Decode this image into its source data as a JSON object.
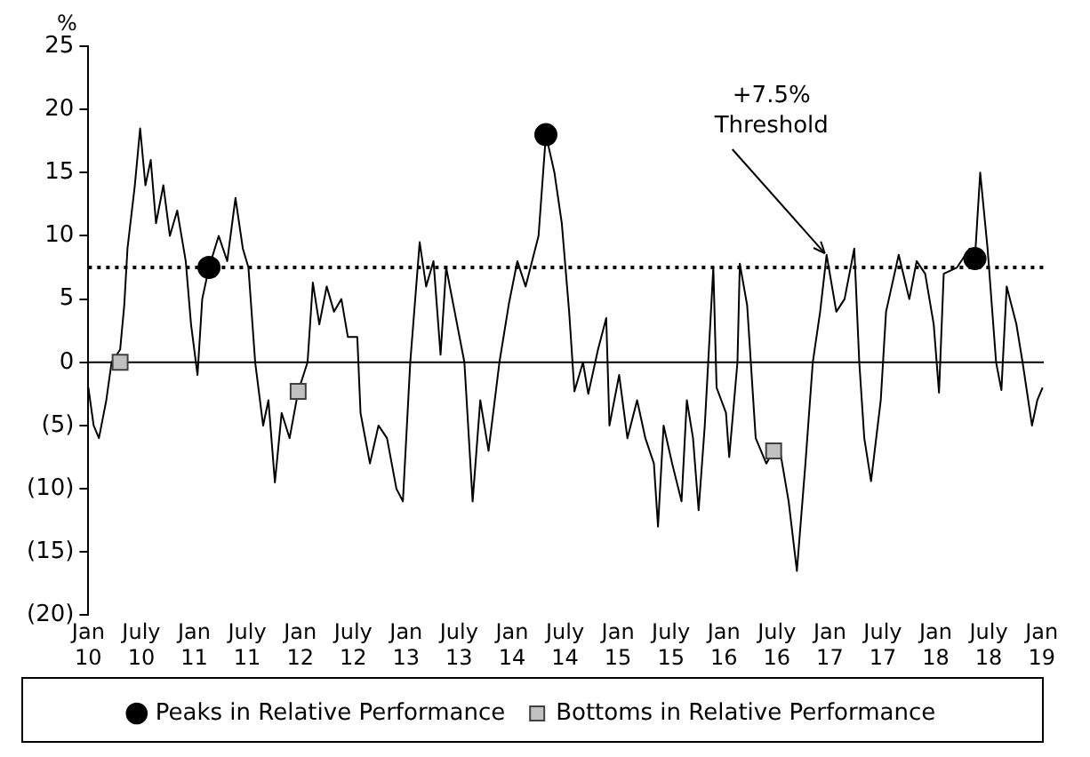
{
  "chart_data": {
    "type": "line",
    "ylabel": "%",
    "legend": "bottom",
    "grid": false,
    "xlim": [
      "2010-01-01",
      "2019-01-08"
    ],
    "xticks": [
      {
        "value": "2010-01",
        "label": "Jan 10"
      },
      {
        "value": "2010-07",
        "label": "July 10"
      },
      {
        "value": "2011-01",
        "label": "Jan 11"
      },
      {
        "value": "2011-07",
        "label": "July 11"
      },
      {
        "value": "2012-01",
        "label": "Jan 12"
      },
      {
        "value": "2012-07",
        "label": "July 12"
      },
      {
        "value": "2013-01",
        "label": "Jan 13"
      },
      {
        "value": "2013-07",
        "label": "July 13"
      },
      {
        "value": "2014-01",
        "label": "Jan 14"
      },
      {
        "value": "2014-07",
        "label": "July 14"
      },
      {
        "value": "2015-01",
        "label": "Jan 15"
      },
      {
        "value": "2015-07",
        "label": "July 15"
      },
      {
        "value": "2016-01",
        "label": "Jan 16"
      },
      {
        "value": "2016-07",
        "label": "July 16"
      },
      {
        "value": "2017-01",
        "label": "Jan 17"
      },
      {
        "value": "2017-07",
        "label": "July 17"
      },
      {
        "value": "2018-01",
        "label": "Jan 18"
      },
      {
        "value": "2018-07",
        "label": "July 18"
      },
      {
        "value": "2019-01",
        "label": "Jan 19"
      }
    ],
    "ylim": [
      -20,
      25
    ],
    "yticks": [
      {
        "value": -20,
        "label": "(20)"
      },
      {
        "value": -15,
        "label": "(15)"
      },
      {
        "value": -10,
        "label": "(10)"
      },
      {
        "value": -5,
        "label": "(5)"
      },
      0,
      5,
      10,
      15,
      20,
      25
    ],
    "ref_lines": [
      {
        "axis": "y",
        "value": 7.5,
        "label": "+7.5% Threshold",
        "line_style": "dotted",
        "color": "#000000"
      },
      {
        "axis": "y",
        "value": 0,
        "line_style": "solid",
        "color": "#000000"
      }
    ],
    "series": [
      {
        "type": "line",
        "color": "#000000",
        "marker": "none",
        "x": [
          "2010-01-01",
          "2010-01-19",
          "2010-02-07",
          "2010-03-02",
          "2010-03-20",
          "2010-04-19",
          "2010-05-03",
          "2010-05-14",
          "2010-06-09",
          "2010-06-27",
          "2010-07-15",
          "2010-08-03",
          "2010-08-21",
          "2010-09-16",
          "2010-10-08",
          "2010-11-03",
          "2010-12-02",
          "2010-12-20",
          "2011-01-12",
          "2011-01-28",
          "2011-02-21",
          "2011-03-24",
          "2011-04-23",
          "2011-05-21",
          "2011-06-16",
          "2011-07-05",
          "2011-07-28",
          "2011-08-25",
          "2011-09-13",
          "2011-10-05",
          "2011-10-28",
          "2011-11-25",
          "2011-12-24",
          "2012-01-26",
          "2012-02-14",
          "2012-03-06",
          "2012-04-01",
          "2012-04-26",
          "2012-05-21",
          "2012-06-13",
          "2012-07-15",
          "2012-07-26",
          "2012-08-28",
          "2012-09-27",
          "2012-10-26",
          "2012-11-28",
          "2012-12-20",
          "2013-01-15",
          "2013-02-17",
          "2013-03-09",
          "2013-04-04",
          "2013-04-28",
          "2013-05-17",
          "2013-06-16",
          "2013-07-19",
          "2013-08-17",
          "2013-09-13",
          "2013-10-11",
          "2013-11-18",
          "2013-12-20",
          "2014-01-19",
          "2014-02-17",
          "2014-04-01",
          "2014-04-26",
          "2014-05-25",
          "2014-06-20",
          "2014-07-15",
          "2014-08-03",
          "2014-09-02",
          "2014-09-20",
          "2014-10-23",
          "2014-11-21",
          "2014-12-02",
          "2015-01-05",
          "2015-02-03",
          "2015-03-06",
          "2015-04-04",
          "2015-05-03",
          "2015-05-17",
          "2015-06-06",
          "2015-07-05",
          "2015-08-07",
          "2015-08-25",
          "2015-09-16",
          "2015-10-05",
          "2015-10-26",
          "2015-11-25",
          "2015-12-06",
          "2016-01-08",
          "2016-01-19",
          "2016-02-17",
          "2016-02-25",
          "2016-03-20",
          "2016-04-19",
          "2016-05-25",
          "2016-06-20",
          "2016-07-08",
          "2016-08-11",
          "2016-09-09",
          "2016-10-08",
          "2016-11-03",
          "2016-11-28",
          "2016-12-20",
          "2017-01-23",
          "2017-02-21",
          "2017-03-24",
          "2017-04-11",
          "2017-04-28",
          "2017-05-21",
          "2017-06-24",
          "2017-07-12",
          "2017-08-25",
          "2017-10-01",
          "2017-10-26",
          "2017-11-25",
          "2017-12-24",
          "2018-01-12",
          "2018-01-28",
          "2018-03-13",
          "2018-04-26",
          "2018-05-14",
          "2018-06-02",
          "2018-06-27",
          "2018-07-26",
          "2018-08-14",
          "2018-09-02",
          "2018-10-05",
          "2018-10-26",
          "2018-11-28",
          "2018-12-16",
          "2019-01-04"
        ],
        "values": [
          -2,
          -5,
          -6,
          -3,
          0,
          1,
          4.5,
          9,
          14,
          18.5,
          14,
          16,
          11,
          14,
          10,
          12,
          8,
          3,
          -1,
          5,
          7.5,
          10,
          8,
          13,
          9,
          7.5,
          0,
          -5,
          -3,
          -9.5,
          -4,
          -6,
          -2.3,
          0,
          6.3,
          3,
          6,
          4,
          5,
          2,
          2,
          -4,
          -8,
          -5,
          -6,
          -10,
          -11,
          0,
          9.5,
          6,
          8,
          0.6,
          7.5,
          4,
          0,
          -11,
          -3,
          -7,
          0,
          4.6,
          8,
          6,
          10,
          18,
          15,
          11,
          4,
          -2.3,
          0,
          -2.5,
          1,
          3.5,
          -5,
          -1,
          -6,
          -3,
          -6,
          -8,
          -13,
          -5,
          -8,
          -11,
          -3,
          -6,
          -11.7,
          -5,
          7.5,
          -2,
          -4,
          -7.5,
          0,
          7.8,
          4.5,
          -6,
          -8,
          -7,
          -6.5,
          -11,
          -16.5,
          -8,
          0,
          4,
          8.5,
          4,
          5,
          9,
          0,
          -6,
          -9.4,
          -3,
          4,
          8.5,
          5,
          8,
          7,
          3,
          -2.4,
          7,
          7.5,
          9,
          8.2,
          15,
          9,
          0,
          -2.2,
          6,
          3,
          0,
          -5,
          -3,
          -2
        ]
      },
      {
        "type": "scatter",
        "name": "Peaks in Relative Performance",
        "color": "#000000",
        "marker": "circle",
        "x": [
          "2011-02-21",
          "2014-04-26",
          "2018-05-14"
        ],
        "values": [
          7.5,
          18,
          8.2
        ]
      },
      {
        "type": "scatter",
        "name": "Bottoms in Relative Performance",
        "color": "#c0c0c0",
        "marker": "square",
        "x": [
          "2010-04-19",
          "2011-12-24",
          "2016-06-20"
        ],
        "values": [
          0,
          -2.3,
          -7
        ]
      }
    ]
  }
}
